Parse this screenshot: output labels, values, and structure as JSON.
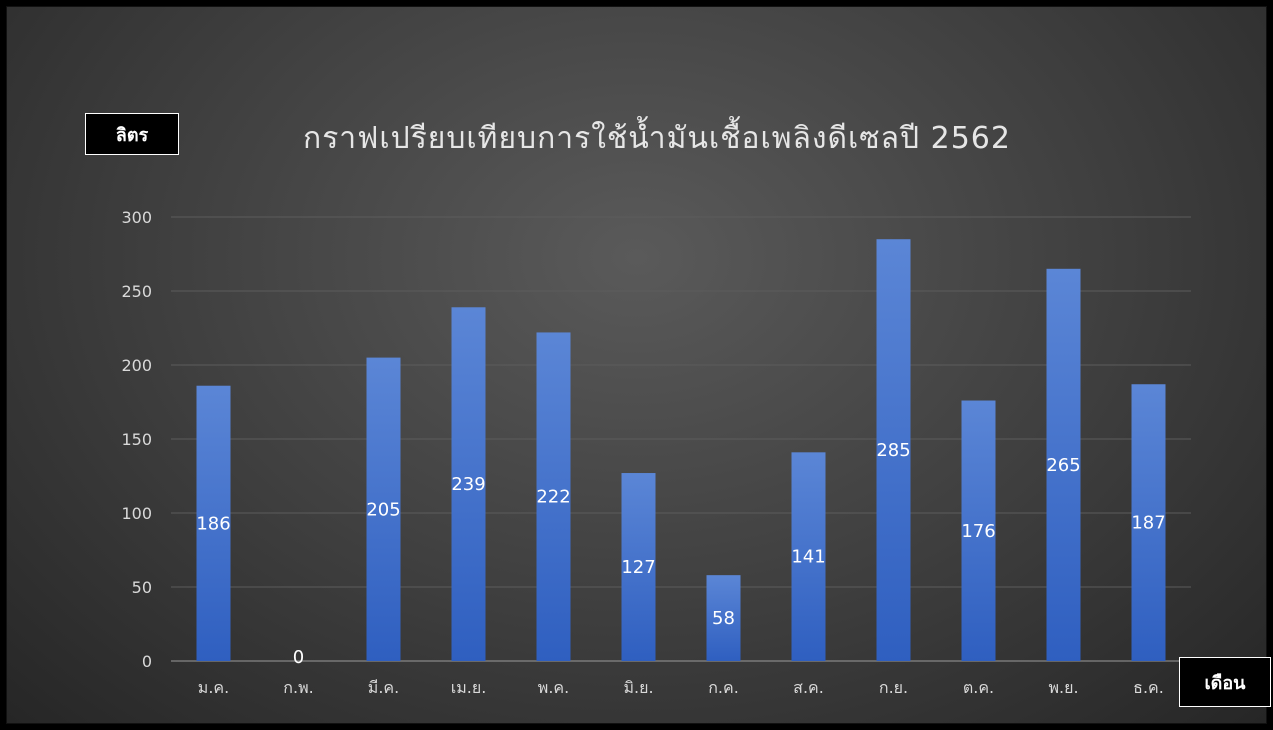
{
  "chart_data": {
    "type": "bar",
    "title": "กราฟเปรียบเทียบการใช้น้ำมันเชื้อเพลิงดีเซลปี 2562",
    "ylabel": "ลิตร",
    "xlabel": "เดือน",
    "categories": [
      "ม.ค.",
      "ก.พ.",
      "มี.ค.",
      "เม.ย.",
      "พ.ค.",
      "มิ.ย.",
      "ก.ค.",
      "ส.ค.",
      "ก.ย.",
      "ต.ค.",
      "พ.ย.",
      "ธ.ค."
    ],
    "values": [
      186,
      0,
      205,
      239,
      222,
      127,
      58,
      141,
      285,
      176,
      265,
      187
    ],
    "ylim": [
      0,
      300
    ],
    "yticks": [
      0,
      50,
      100,
      150,
      200,
      250,
      300
    ],
    "grid": true,
    "legend": "none",
    "bar_color": "#4472c4",
    "label_color": "#ffffff"
  }
}
